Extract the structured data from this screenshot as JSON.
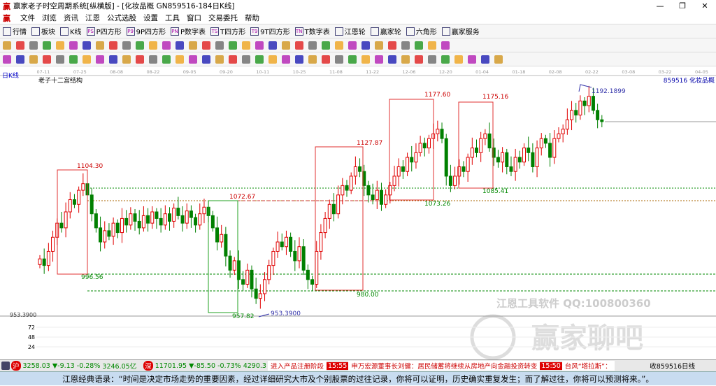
{
  "window": {
    "title": "赢家老子时空周期系统[纵横版] - [化妆品概  GN859516-184日K线]",
    "controls": [
      "—",
      "❐",
      "✕"
    ]
  },
  "menu": [
    "文件",
    "浏览",
    "资讯",
    "江恩",
    "公式选股",
    "设置",
    "工具",
    "窗口",
    "交易委托",
    "帮助"
  ],
  "toolbar1": [
    {
      "icon": "grid-icon",
      "label": "行情"
    },
    {
      "icon": "blocks-icon",
      "label": "板块"
    },
    {
      "icon": "kline-icon",
      "label": "K线"
    },
    {
      "icon": "PS",
      "label": "P四方形"
    },
    {
      "icon": "P9",
      "label": "9P四方形"
    },
    {
      "icon": "PN",
      "label": "P数字表"
    },
    {
      "icon": "TS",
      "label": "T四方形"
    },
    {
      "icon": "T9",
      "label": "9T四方形"
    },
    {
      "icon": "TN",
      "label": "T数字表"
    },
    {
      "icon": "wheel-icon",
      "label": "江恩轮"
    },
    {
      "icon": "wheel-icon",
      "label": "赢家轮"
    },
    {
      "icon": "hexagon-icon",
      "label": "六角形"
    },
    {
      "icon": "service-icon",
      "label": "赢家服务"
    }
  ],
  "chart": {
    "period_label": "日K线",
    "structure_label": "老子十二宫结构",
    "symbol_label": "859516 化妆品概",
    "date_ticks": [
      "07-11",
      "07-25",
      "08-08",
      "08-22",
      "09-05",
      "09-20",
      "10-11",
      "10-25",
      "11-08",
      "11-22",
      "12-06",
      "12-20",
      "01-04",
      "01-18",
      "02-08",
      "02-22",
      "03-08",
      "03-22",
      "04-05"
    ],
    "price_min_label": "953.3900",
    "volume_ticks": [
      "72",
      "48",
      "24"
    ],
    "annotations": [
      "1104.30",
      "996.56",
      "1072.67",
      "957.82",
      "953.3900",
      "1127.87",
      "980.00",
      "1177.60",
      "1073.26",
      "1175.16",
      "1085.41",
      "1192.1899"
    ],
    "watermark": [
      "江恩工具软件  QQ:100800360",
      "赢家聊吧"
    ],
    "colors": {
      "up": "#e00000",
      "down": "#008000",
      "box_red": "#e03030",
      "box_green": "#20a020"
    }
  },
  "chart_data": {
    "type": "candlestick",
    "ylim": [
      953.39,
      1192.19
    ],
    "closes": [
      1012,
      1005,
      1020,
      1035,
      1050,
      1045,
      1062,
      1075,
      1070,
      1085,
      1092,
      1080,
      1060,
      1045,
      1030,
      1042,
      1036,
      1050,
      1040,
      1055,
      1048,
      1060,
      1052,
      1045,
      1058,
      1050,
      1062,
      1055,
      1048,
      1060,
      1052,
      1066,
      1058,
      1050,
      1063,
      1056,
      1048,
      1060,
      1067,
      1058,
      1045,
      1030,
      1038,
      1015,
      1000,
      1010,
      990,
      985,
      1000,
      980,
      970,
      975,
      990,
      1005,
      1020,
      1030,
      1025,
      1035,
      1020,
      1010,
      1025,
      1000,
      990,
      985,
      1020,
      1040,
      1055,
      1070,
      1060,
      1080,
      1090,
      1085,
      1100,
      1110,
      1105,
      1090,
      1080,
      1075,
      1085,
      1070,
      1080,
      1090,
      1100,
      1110,
      1105,
      1120,
      1115,
      1125,
      1135,
      1130,
      1140,
      1145,
      1150,
      1140,
      1100,
      1090,
      1100,
      1110,
      1105,
      1120,
      1130,
      1125,
      1140,
      1145,
      1130,
      1120,
      1115,
      1125,
      1110,
      1105,
      1120,
      1115,
      1130,
      1125,
      1110,
      1130,
      1140,
      1135,
      1120,
      1140,
      1145,
      1150,
      1160,
      1170,
      1165,
      1180,
      1175,
      1185,
      1170,
      1160,
      1158
    ]
  },
  "status": {
    "sh_index": "3258.03",
    "sh_change": "▼-9.13",
    "sh_pct": "-0.28%",
    "sh_amount": "3246.05亿",
    "sz_index": "11701.95",
    "sz_change": "▼-85.50",
    "sz_pct": "-0.73%",
    "sz_amount": "4290.3",
    "news": [
      "进入产品注册阶段",
      "15:55",
      "申万宏源董事长刘健：居民储蓄将继续从房地产向金融投资转变",
      "15:50",
      "台风“塔拉斯”："
    ],
    "right": "收859516日线"
  },
  "quote": "江恩经典语录：“时间是决定市场走势的重要因素，经过详细研究大市及个别股票的过往记录，你将可以证明，历史确实重复发生；而了解过往，你将可以预测将来。”。"
}
